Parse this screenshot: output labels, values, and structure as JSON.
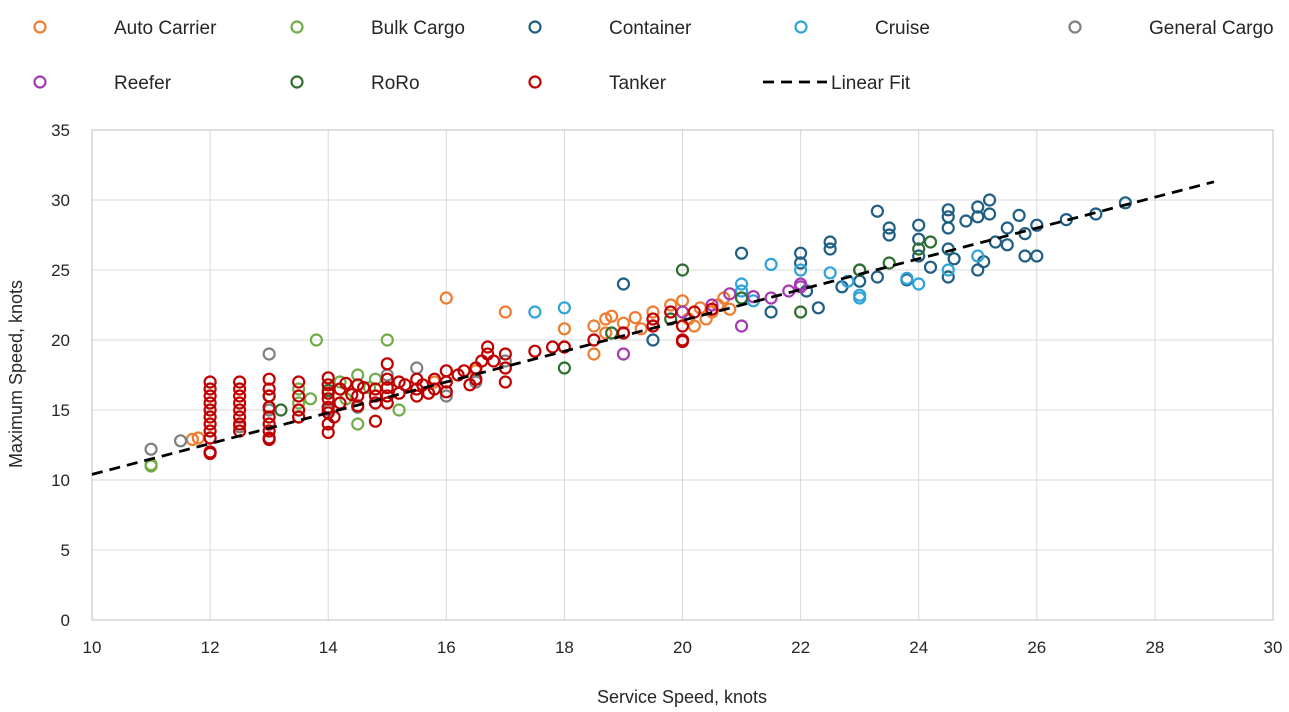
{
  "chart_data": {
    "type": "scatter",
    "xlabel": "Service Speed, knots",
    "ylabel": "Maximum Speed, knots",
    "xlim": [
      10,
      30
    ],
    "ylim": [
      0,
      35
    ],
    "x_ticks": [
      10,
      12,
      14,
      16,
      18,
      20,
      22,
      24,
      26,
      28,
      30
    ],
    "y_ticks": [
      0,
      5,
      10,
      15,
      20,
      25,
      30,
      35
    ],
    "grid": true,
    "legend_position": "top",
    "marker": "open-circle",
    "series": [
      {
        "name": "Auto Carrier",
        "color": "#ED7D31",
        "points": [
          [
            11.8,
            13
          ],
          [
            11.7,
            12.9
          ],
          [
            16,
            23
          ],
          [
            17,
            22
          ],
          [
            18,
            20.8
          ],
          [
            18.5,
            19
          ],
          [
            18.5,
            21
          ],
          [
            18.7,
            21.5
          ],
          [
            18.8,
            21.7
          ],
          [
            19,
            21.2
          ],
          [
            19.2,
            21.6
          ],
          [
            19.5,
            22
          ],
          [
            19.8,
            22.5
          ],
          [
            20,
            22.8
          ],
          [
            20.2,
            21
          ],
          [
            20.4,
            21.5
          ],
          [
            20.5,
            22
          ],
          [
            20.6,
            22.5
          ],
          [
            20.7,
            23
          ],
          [
            20.8,
            22.2
          ],
          [
            16.5,
            17.8
          ],
          [
            15.8,
            17
          ],
          [
            18.7,
            20.5
          ],
          [
            19.3,
            20.8
          ],
          [
            20.1,
            21.5
          ],
          [
            20.3,
            22.3
          ]
        ]
      },
      {
        "name": "Bulk Cargo",
        "color": "#70AD47",
        "points": [
          [
            11,
            11
          ],
          [
            11,
            11.1
          ],
          [
            13.5,
            15.5
          ],
          [
            13.5,
            16.5
          ],
          [
            13.8,
            20
          ],
          [
            14,
            16.8
          ],
          [
            14.2,
            17
          ],
          [
            14.5,
            17.5
          ],
          [
            14.8,
            17.2
          ],
          [
            15,
            20
          ],
          [
            15.2,
            15
          ],
          [
            14.5,
            14
          ],
          [
            14.7,
            16.6
          ],
          [
            13.7,
            15.8
          ],
          [
            14.3,
            15.8
          ]
        ]
      },
      {
        "name": "Container",
        "color": "#1F5F84",
        "points": [
          [
            19,
            24
          ],
          [
            21,
            26.2
          ],
          [
            22,
            26.2
          ],
          [
            22,
            25.5
          ],
          [
            22.5,
            26.5
          ],
          [
            22.5,
            27
          ],
          [
            23,
            25
          ],
          [
            23.3,
            29.2
          ],
          [
            23.5,
            28
          ],
          [
            23.5,
            27.5
          ],
          [
            24,
            28.2
          ],
          [
            24,
            27.2
          ],
          [
            24.5,
            29.3
          ],
          [
            24.5,
            28.8
          ],
          [
            24.5,
            28
          ],
          [
            24.8,
            28.5
          ],
          [
            25,
            29.5
          ],
          [
            25,
            28.8
          ],
          [
            25.2,
            30
          ],
          [
            25.2,
            29
          ],
          [
            25.5,
            28
          ],
          [
            25.7,
            28.9
          ],
          [
            26,
            28.2
          ],
          [
            26.5,
            28.6
          ],
          [
            27,
            29
          ],
          [
            27.5,
            29.8
          ],
          [
            26,
            26
          ],
          [
            25.8,
            26
          ],
          [
            25,
            25
          ],
          [
            24.5,
            24.5
          ],
          [
            24.2,
            25.2
          ],
          [
            23.8,
            24.3
          ],
          [
            23.3,
            24.5
          ],
          [
            22.3,
            22.3
          ],
          [
            22.1,
            23.5
          ],
          [
            22.7,
            23.8
          ],
          [
            24,
            26
          ],
          [
            24.5,
            26.5
          ],
          [
            25.3,
            27
          ],
          [
            25.5,
            26.8
          ],
          [
            25.8,
            27.6
          ],
          [
            19.5,
            20
          ],
          [
            21.5,
            22
          ],
          [
            23,
            24.2
          ],
          [
            24.6,
            25.8
          ],
          [
            25.1,
            25.6
          ]
        ]
      },
      {
        "name": "Cruise",
        "color": "#2EA4D9",
        "points": [
          [
            17.5,
            22
          ],
          [
            18,
            22.3
          ],
          [
            21,
            24
          ],
          [
            21,
            23.5
          ],
          [
            21.5,
            25.4
          ],
          [
            22,
            25
          ],
          [
            22.5,
            24.8
          ],
          [
            23,
            23
          ],
          [
            23,
            23.2
          ],
          [
            24,
            24
          ],
          [
            24.5,
            25
          ],
          [
            25,
            26
          ],
          [
            23.8,
            24.4
          ],
          [
            22.8,
            24.2
          ],
          [
            21.2,
            22.8
          ]
        ]
      },
      {
        "name": "General Cargo",
        "color": "#7F7F7F",
        "points": [
          [
            11,
            12.2
          ],
          [
            11.5,
            12.8
          ],
          [
            12.5,
            13.8
          ],
          [
            13,
            19
          ],
          [
            13,
            15
          ],
          [
            13.5,
            14.5
          ],
          [
            14,
            15
          ],
          [
            15.5,
            18
          ],
          [
            16,
            16
          ],
          [
            16.5,
            17
          ],
          [
            17,
            18.5
          ],
          [
            18,
            19.5
          ],
          [
            15,
            17.5
          ],
          [
            14.5,
            15.2
          ]
        ]
      },
      {
        "name": "Reefer",
        "color": "#A43BB0",
        "points": [
          [
            19,
            19
          ],
          [
            19,
            20.5
          ],
          [
            19.5,
            21
          ],
          [
            20,
            22
          ],
          [
            20.5,
            22.5
          ],
          [
            20.8,
            23.3
          ],
          [
            21,
            21
          ],
          [
            21.5,
            23
          ],
          [
            21.8,
            23.5
          ],
          [
            22,
            24
          ],
          [
            22,
            23.8
          ],
          [
            21.2,
            23.1
          ]
        ]
      },
      {
        "name": "RoRo",
        "color": "#2F6E2F",
        "points": [
          [
            13,
            16
          ],
          [
            13.2,
            15
          ],
          [
            18,
            18
          ],
          [
            18.8,
            20.5
          ],
          [
            19.8,
            21.5
          ],
          [
            20,
            25
          ],
          [
            21,
            23
          ],
          [
            22,
            22
          ],
          [
            23,
            25
          ],
          [
            23.5,
            25.5
          ],
          [
            24,
            26.5
          ],
          [
            24.2,
            27
          ],
          [
            14,
            16.4
          ]
        ]
      },
      {
        "name": "Tanker",
        "color": "#C00000",
        "points": [
          [
            12,
            17
          ],
          [
            12,
            16.5
          ],
          [
            12,
            16
          ],
          [
            12,
            15.5
          ],
          [
            12,
            15
          ],
          [
            12,
            14.5
          ],
          [
            12,
            14
          ],
          [
            12,
            13.5
          ],
          [
            12,
            13
          ],
          [
            12,
            12
          ],
          [
            12,
            11.9
          ],
          [
            12.5,
            17
          ],
          [
            12.5,
            16.5
          ],
          [
            12.5,
            16
          ],
          [
            12.5,
            15.5
          ],
          [
            12.5,
            15
          ],
          [
            12.5,
            14.5
          ],
          [
            12.5,
            14
          ],
          [
            12.5,
            13.5
          ],
          [
            13,
            17.2
          ],
          [
            13,
            16.5
          ],
          [
            13,
            16
          ],
          [
            13,
            15.2
          ],
          [
            13,
            14.5
          ],
          [
            13,
            14
          ],
          [
            13,
            13.5
          ],
          [
            13,
            13
          ],
          [
            13,
            12.9
          ],
          [
            13.5,
            15
          ],
          [
            13.5,
            14.5
          ],
          [
            13.5,
            16
          ],
          [
            13.5,
            17
          ],
          [
            14,
            17.3
          ],
          [
            14,
            16.8
          ],
          [
            14,
            16.2
          ],
          [
            14,
            15.8
          ],
          [
            14,
            15.2
          ],
          [
            14,
            14.8
          ],
          [
            14,
            14
          ],
          [
            14,
            13.4
          ],
          [
            14.2,
            16.5
          ],
          [
            14.2,
            15.5
          ],
          [
            14.3,
            16.9
          ],
          [
            14.4,
            16.1
          ],
          [
            14.5,
            16.8
          ],
          [
            14.5,
            16
          ],
          [
            14.5,
            15.3
          ],
          [
            14.6,
            16.6
          ],
          [
            14.8,
            16.5
          ],
          [
            14.8,
            16
          ],
          [
            14.8,
            15.5
          ],
          [
            15,
            18.3
          ],
          [
            15,
            17.2
          ],
          [
            15,
            16.6
          ],
          [
            15,
            16
          ],
          [
            15,
            15.5
          ],
          [
            15.2,
            17
          ],
          [
            15.2,
            16.2
          ],
          [
            15.3,
            16.8
          ],
          [
            15.5,
            17.2
          ],
          [
            15.5,
            16.5
          ],
          [
            15.5,
            16
          ],
          [
            15.6,
            16.8
          ],
          [
            15.8,
            17.2
          ],
          [
            15.8,
            16.5
          ],
          [
            16,
            17.8
          ],
          [
            16,
            17
          ],
          [
            16,
            16.3
          ],
          [
            16.2,
            17.5
          ],
          [
            16.3,
            17.8
          ],
          [
            16.5,
            18
          ],
          [
            16.5,
            17.2
          ],
          [
            16.6,
            18.5
          ],
          [
            16.7,
            19.5
          ],
          [
            16.7,
            19
          ],
          [
            16.8,
            18.5
          ],
          [
            17,
            18
          ],
          [
            17,
            19
          ],
          [
            17,
            17
          ],
          [
            17.5,
            19.2
          ],
          [
            17.8,
            19.5
          ],
          [
            18,
            19.5
          ],
          [
            18.5,
            20
          ],
          [
            19,
            20.5
          ],
          [
            19.5,
            21.5
          ],
          [
            19.5,
            21
          ],
          [
            19.8,
            22
          ],
          [
            20,
            21
          ],
          [
            20,
            20
          ],
          [
            20,
            19.9
          ],
          [
            20.2,
            22
          ],
          [
            20.5,
            22.2
          ],
          [
            14.8,
            14.2
          ],
          [
            14.1,
            14.5
          ],
          [
            15.7,
            16.2
          ],
          [
            16.4,
            16.8
          ]
        ]
      }
    ],
    "fit_line": {
      "name": "Linear Fit",
      "color": "#000000",
      "x": [
        10,
        29
      ],
      "y": [
        10.4,
        31.3
      ]
    }
  }
}
